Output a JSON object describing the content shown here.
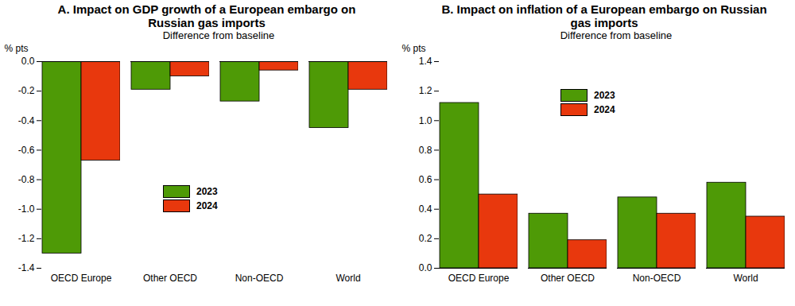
{
  "chart_data": [
    {
      "type": "bar",
      "title": "A. Impact on GDP growth of a European embargo on Russian gas imports",
      "subtitle": "Difference from baseline",
      "ylabel": "% pts",
      "categories": [
        "OECD Europe",
        "Other OECD",
        "Non-OECD",
        "World"
      ],
      "series": [
        {
          "name": "2023",
          "color": "#4e9a06",
          "values": [
            -1.3,
            -0.19,
            -0.27,
            -0.45
          ]
        },
        {
          "name": "2024",
          "color": "#e8380d",
          "values": [
            -0.67,
            -0.1,
            -0.06,
            -0.19
          ]
        }
      ],
      "ylim": [
        -1.4,
        0
      ],
      "yticks": [
        {
          "value": -1.4,
          "label": "-1.4"
        },
        {
          "value": -1.2,
          "label": "-1.2"
        },
        {
          "value": -1,
          "label": "-1.0"
        },
        {
          "value": -0.8,
          "label": "-0.8"
        },
        {
          "value": -0.6,
          "label": "-0.6"
        },
        {
          "value": -0.4,
          "label": "-0.4"
        },
        {
          "value": -0.2,
          "label": "-0.2"
        },
        {
          "value": 0,
          "label": "0.0"
        }
      ],
      "grid": false,
      "legend": "center"
    },
    {
      "type": "bar",
      "title": "B. Impact on inflation of a European embargo on Russian gas imports",
      "subtitle": "Difference from baseline",
      "ylabel": "% pts",
      "categories": [
        "OECD Europe",
        "Other OECD",
        "Non-OECD",
        "World"
      ],
      "series": [
        {
          "name": "2023",
          "color": "#4e9a06",
          "values": [
            1.12,
            0.37,
            0.48,
            0.58
          ]
        },
        {
          "name": "2024",
          "color": "#e8380d",
          "values": [
            0.5,
            0.19,
            0.37,
            0.35
          ]
        }
      ],
      "ylim": [
        0,
        1.4
      ],
      "yticks": [
        {
          "value": 0,
          "label": "0.0"
        },
        {
          "value": 0.2,
          "label": "0.2"
        },
        {
          "value": 0.4,
          "label": "0.4"
        },
        {
          "value": 0.6,
          "label": "0.6"
        },
        {
          "value": 0.8,
          "label": "0.8"
        },
        {
          "value": 1,
          "label": "1.0"
        },
        {
          "value": 1.2,
          "label": "1.2"
        },
        {
          "value": 1.4,
          "label": "1.4"
        }
      ],
      "grid": false,
      "legend": "top"
    }
  ]
}
